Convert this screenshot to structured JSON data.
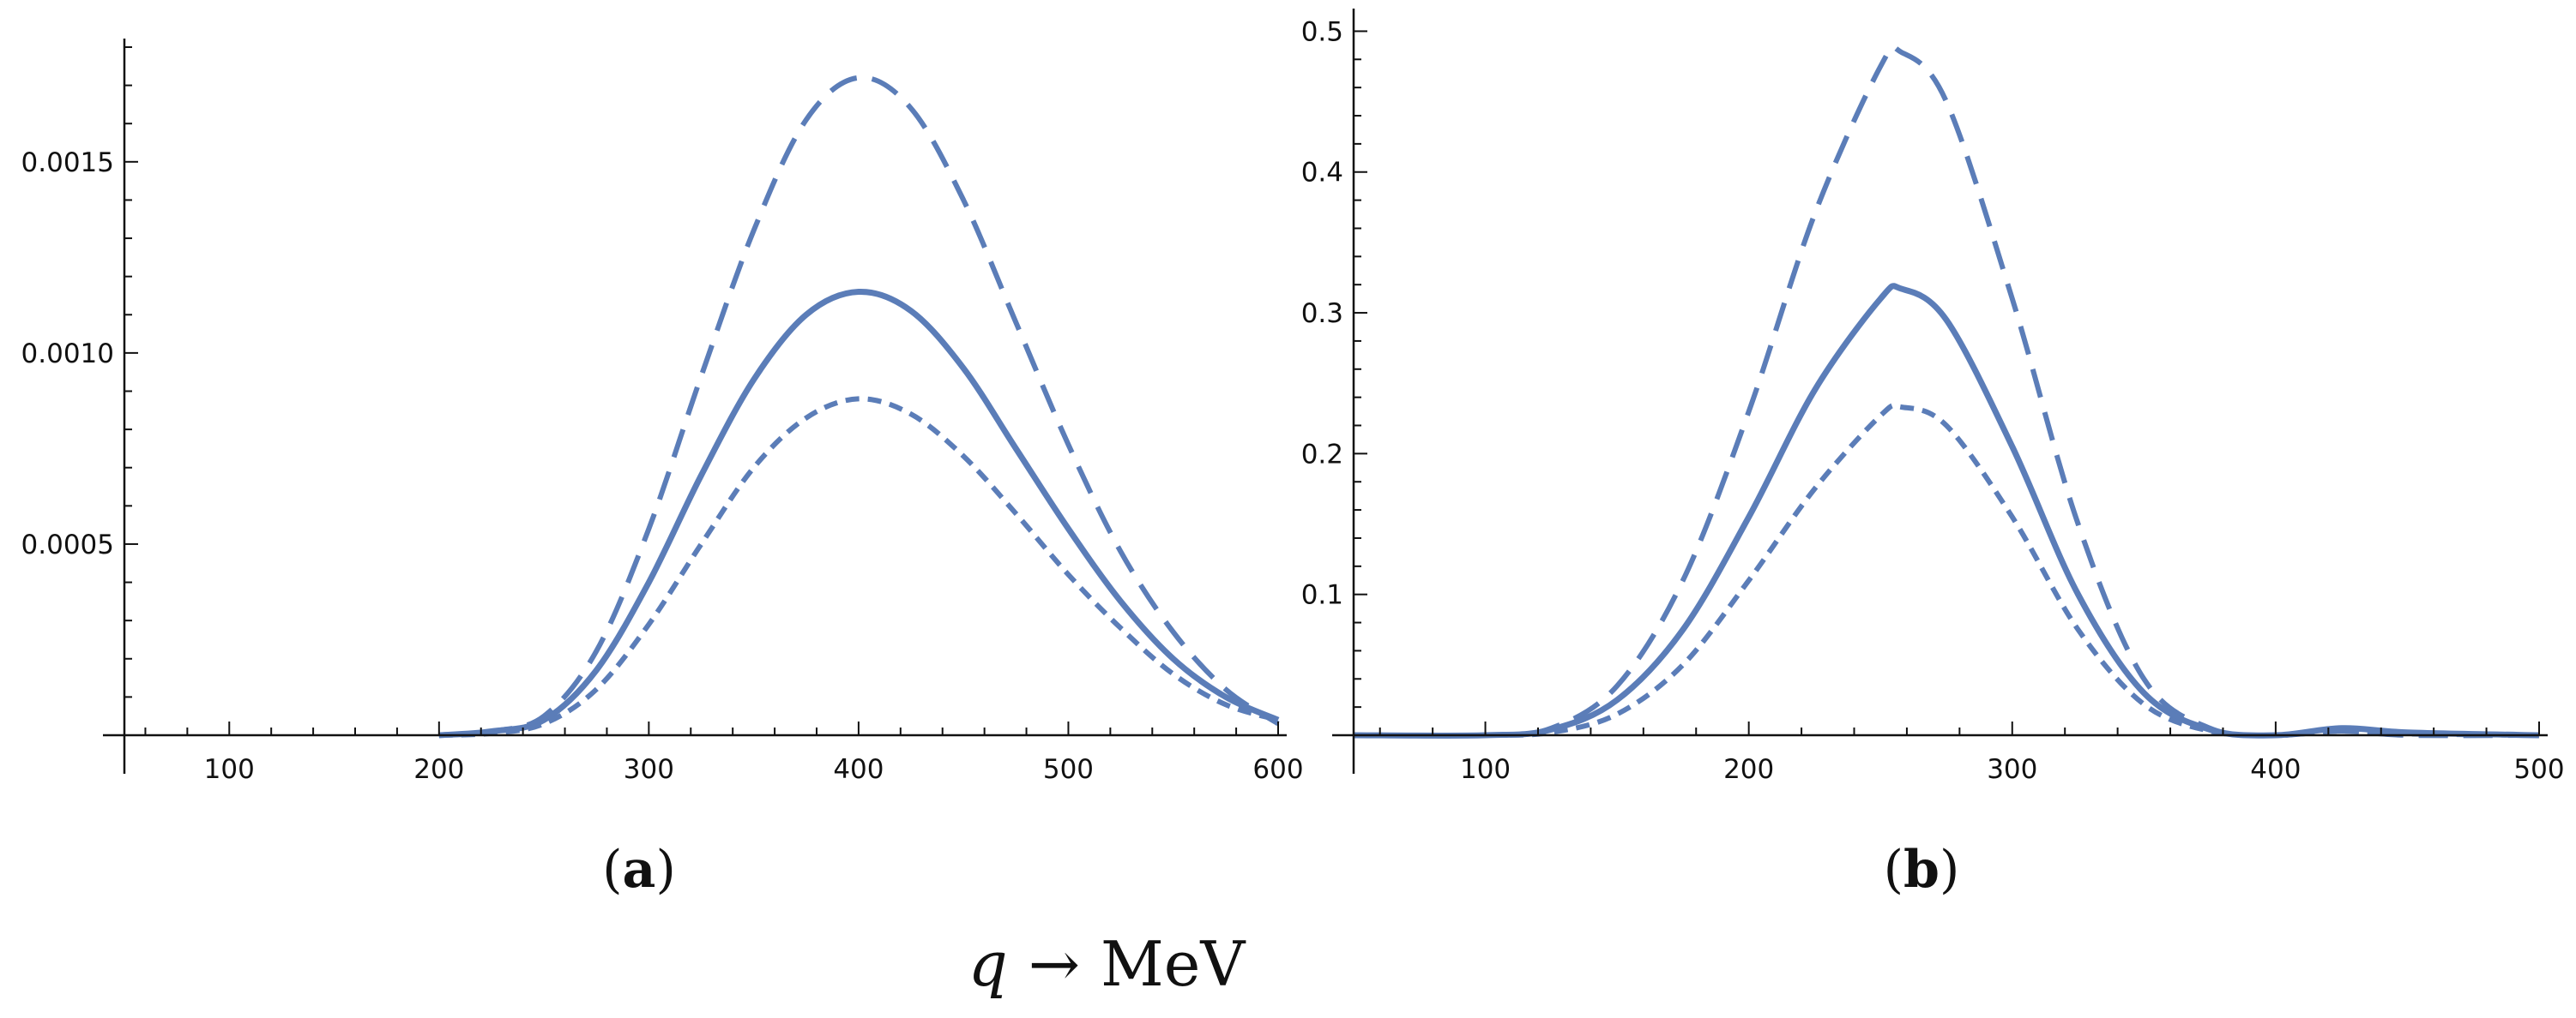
{
  "chart_data": [
    {
      "type": "line",
      "panel_label": "a",
      "xlim": [
        50,
        600
      ],
      "ylim": [
        0,
        0.0018
      ],
      "x_ticks": [
        100,
        200,
        300,
        400,
        500,
        600
      ],
      "x_tick_labels": [
        "100",
        "200",
        "300",
        "400",
        "500",
        "600"
      ],
      "y_ticks": [
        0.0005,
        0.001,
        0.0015
      ],
      "y_tick_labels": [
        "0.0005",
        "0.0010",
        "0.0015"
      ],
      "grid": false,
      "series": [
        {
          "name": "long-dashed",
          "style": "long-dash",
          "peak_x": 400,
          "peak_y": 0.00172,
          "x": [
            200,
            225,
            250,
            275,
            300,
            325,
            350,
            375,
            400,
            425,
            450,
            475,
            500,
            525,
            550,
            575,
            600
          ],
          "y": [
            0,
            1e-05,
            5e-05,
            0.00022,
            0.00054,
            0.00094,
            0.00132,
            0.00161,
            0.00172,
            0.00164,
            0.0014,
            0.00108,
            0.00076,
            0.00048,
            0.00027,
            0.00012,
            3e-05
          ]
        },
        {
          "name": "solid",
          "style": "solid",
          "peak_x": 400,
          "peak_y": 0.00116,
          "x": [
            200,
            225,
            250,
            275,
            300,
            325,
            350,
            375,
            400,
            425,
            450,
            475,
            500,
            525,
            550,
            575,
            600
          ],
          "y": [
            0,
            1e-05,
            4e-05,
            0.00017,
            0.0004,
            0.00068,
            0.00093,
            0.0011,
            0.00116,
            0.00111,
            0.00096,
            0.00075,
            0.00054,
            0.00035,
            0.0002,
            0.0001,
            4e-05
          ]
        },
        {
          "name": "short-dashed",
          "style": "short-dash",
          "peak_x": 400,
          "peak_y": 0.00088,
          "x": [
            200,
            225,
            250,
            275,
            300,
            325,
            350,
            375,
            400,
            425,
            450,
            475,
            500,
            525,
            550,
            575,
            600
          ],
          "y": [
            0,
            5e-06,
            3e-05,
            0.00012,
            0.00029,
            0.0005,
            0.0007,
            0.00083,
            0.00088,
            0.00084,
            0.00073,
            0.00058,
            0.00042,
            0.00028,
            0.00016,
            8e-05,
            4e-05
          ]
        }
      ]
    },
    {
      "type": "line",
      "panel_label": "b",
      "xlim": [
        50,
        500
      ],
      "ylim": [
        0,
        0.51
      ],
      "x_ticks": [
        100,
        200,
        300,
        400,
        500
      ],
      "x_tick_labels": [
        "100",
        "200",
        "300",
        "400",
        "500"
      ],
      "y_ticks": [
        0.1,
        0.2,
        0.3,
        0.4,
        0.5
      ],
      "y_tick_labels": [
        "0.1",
        "0.2",
        "0.3",
        "0.4",
        "0.5"
      ],
      "grid": false,
      "series": [
        {
          "name": "long-dashed",
          "style": "long-dash",
          "peak_x": 258,
          "peak_y": 0.485,
          "x": [
            50,
            100,
            125,
            150,
            175,
            200,
            225,
            250,
            258,
            275,
            300,
            325,
            350,
            375,
            400,
            425,
            450,
            500
          ],
          "y": [
            0,
            0,
            0.005,
            0.035,
            0.11,
            0.23,
            0.37,
            0.475,
            0.485,
            0.45,
            0.31,
            0.15,
            0.04,
            0.005,
            0,
            0.003,
            0,
            0
          ]
        },
        {
          "name": "solid",
          "style": "solid",
          "peak_x": 258,
          "peak_y": 0.317,
          "x": [
            50,
            100,
            125,
            150,
            175,
            200,
            225,
            250,
            258,
            275,
            300,
            325,
            350,
            375,
            400,
            425,
            450,
            500
          ],
          "y": [
            0,
            0,
            0.004,
            0.025,
            0.075,
            0.155,
            0.245,
            0.31,
            0.317,
            0.295,
            0.205,
            0.1,
            0.03,
            0.004,
            0,
            0.005,
            0.002,
            0
          ]
        },
        {
          "name": "short-dashed",
          "style": "short-dash",
          "peak_x": 258,
          "peak_y": 0.233,
          "x": [
            50,
            100,
            125,
            150,
            175,
            200,
            225,
            250,
            258,
            275,
            300,
            325,
            350,
            375,
            400,
            425,
            450,
            500
          ],
          "y": [
            0,
            0,
            0.002,
            0.015,
            0.05,
            0.11,
            0.175,
            0.227,
            0.233,
            0.22,
            0.155,
            0.075,
            0.022,
            0.003,
            0,
            0.003,
            0.001,
            0
          ]
        }
      ]
    }
  ],
  "colors": {
    "line": "#5B7DB8",
    "axis": "#111111"
  },
  "xlabel": {
    "var": "q",
    "arrow": "→",
    "unit": "MeV"
  }
}
